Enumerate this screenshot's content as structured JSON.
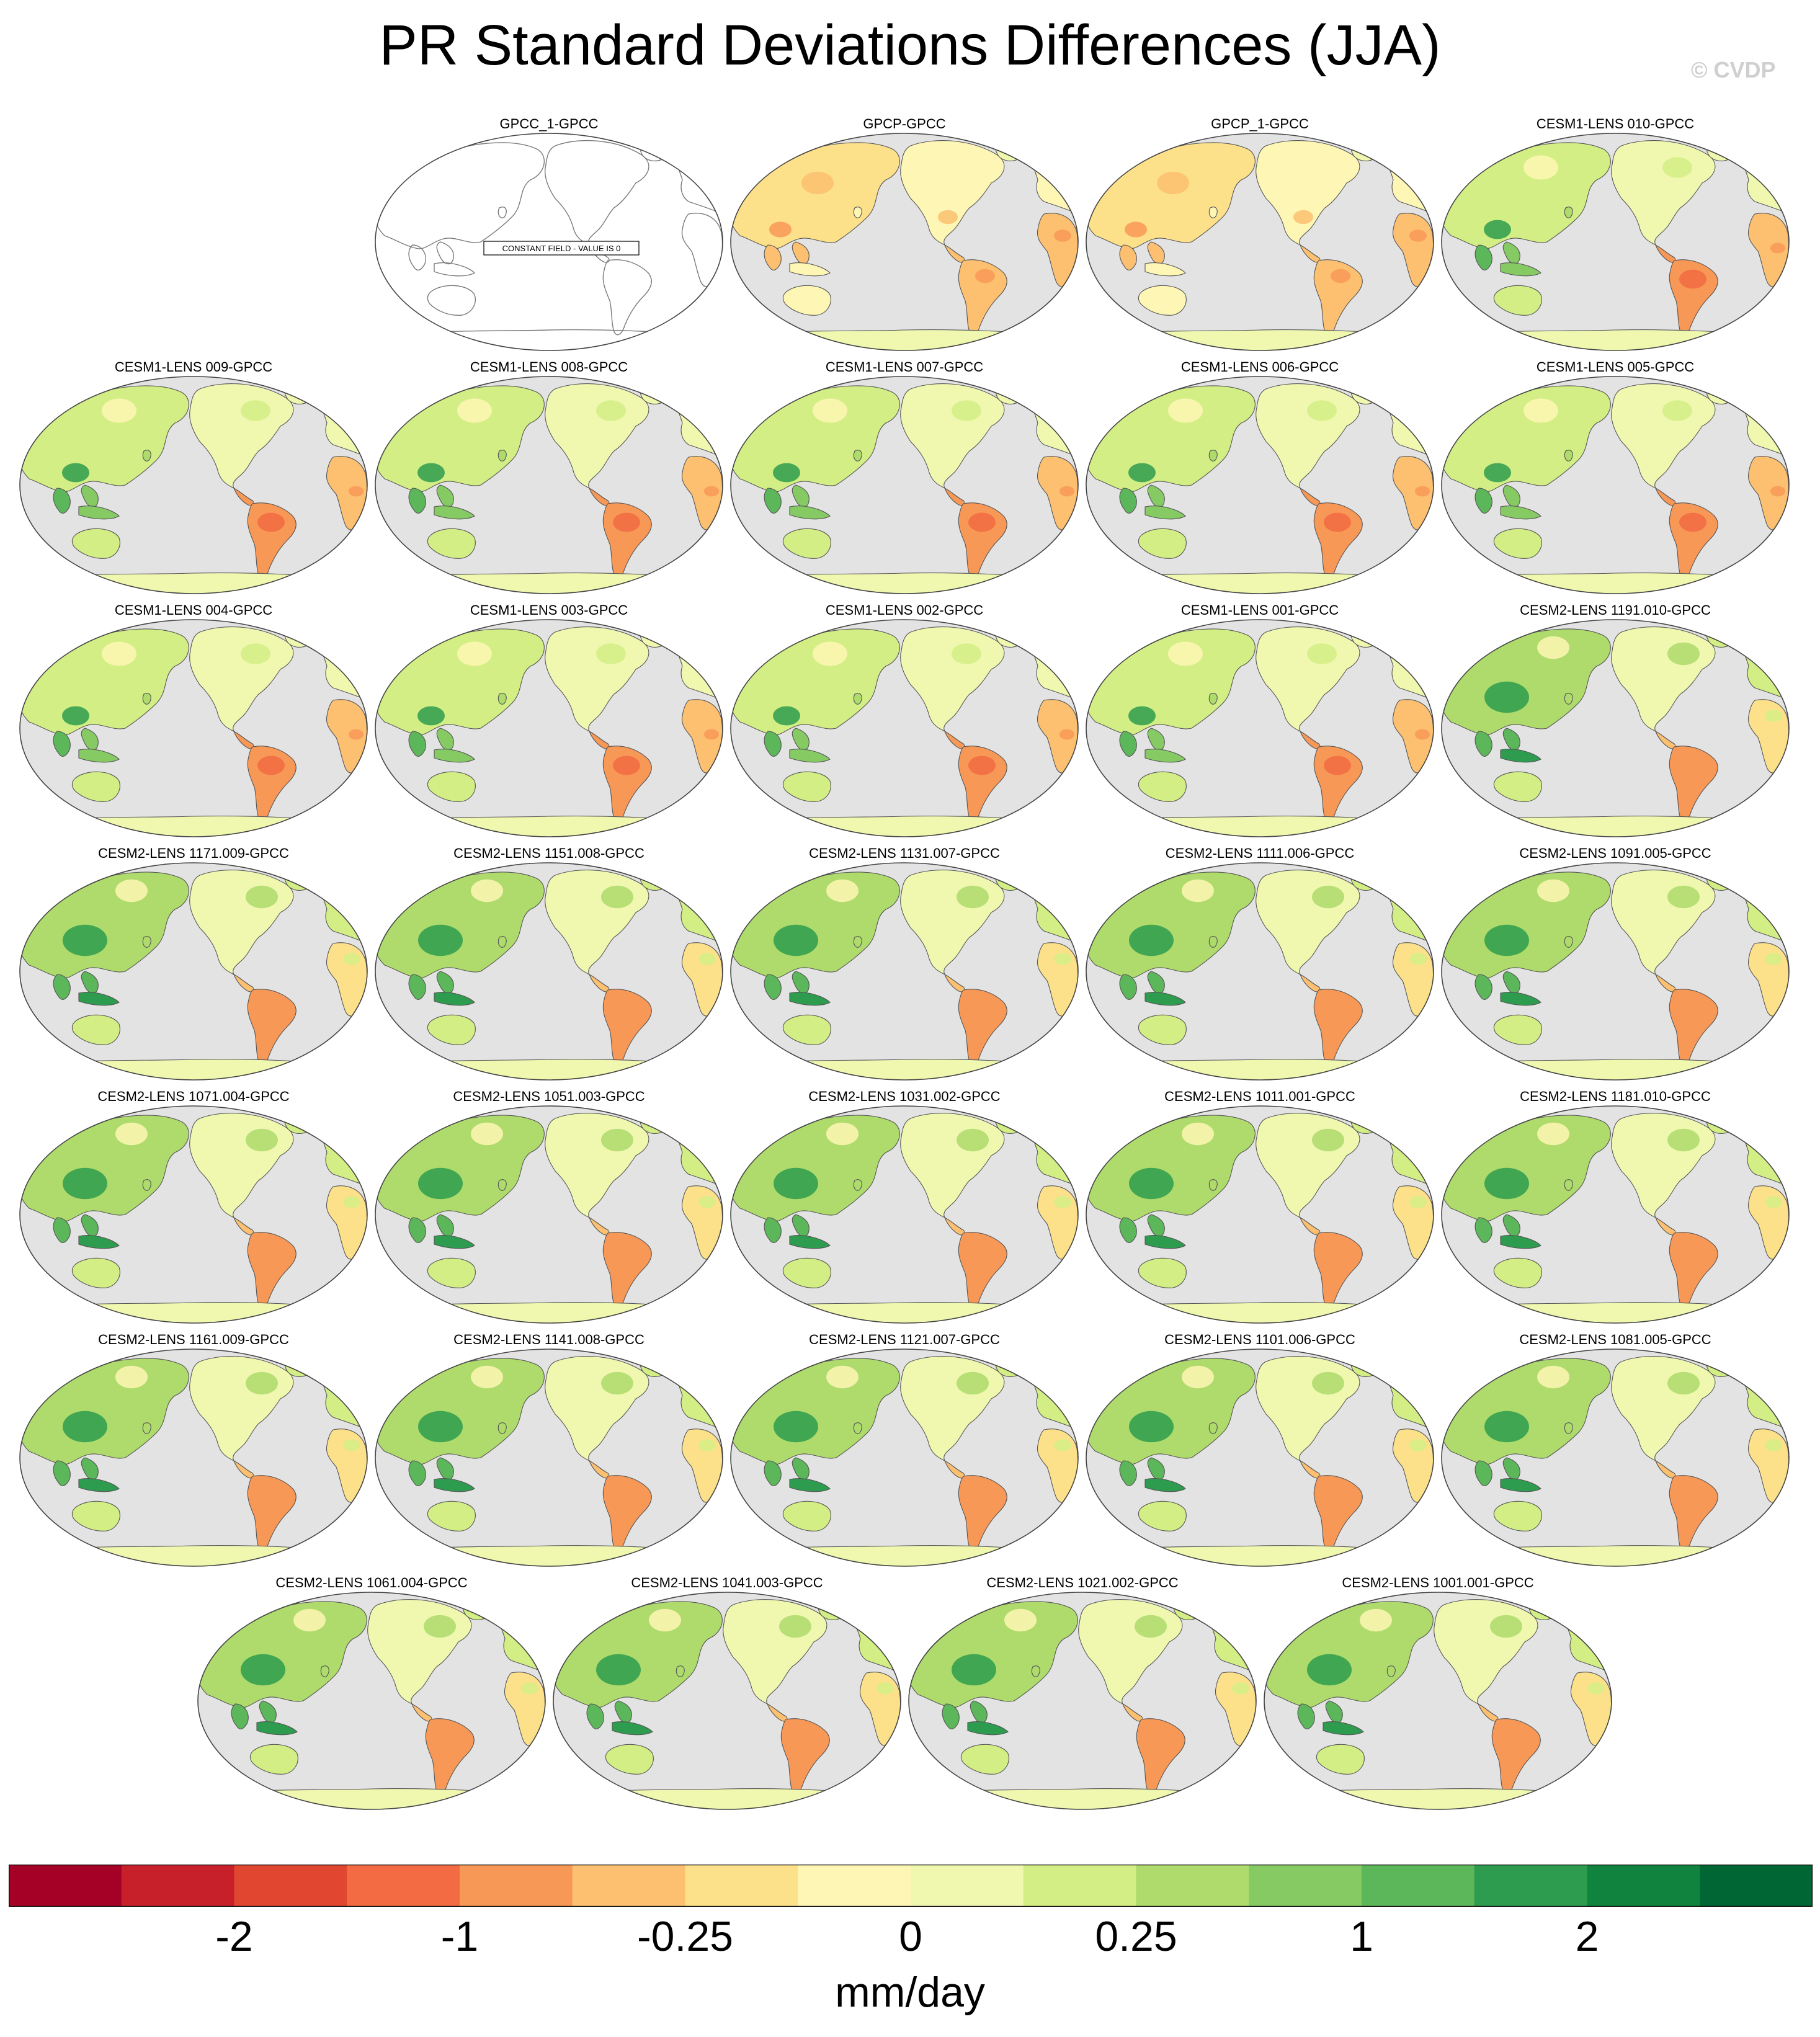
{
  "title": "PR Standard Deviations Differences (JJA)",
  "credit": "© CVDP",
  "panels": [
    {
      "label": "GPCC_1-GPCC",
      "constant": true,
      "constant_text": "CONSTANT FIELD - VALUE IS 0"
    },
    {
      "label": "GPCP-GPCC",
      "style": "obs"
    },
    {
      "label": "GPCP_1-GPCC",
      "style": "obs"
    },
    {
      "label": "CESM1-LENS 010-GPCC",
      "style": "cesm1"
    },
    {
      "label": "CESM1-LENS 009-GPCC",
      "style": "cesm1"
    },
    {
      "label": "CESM1-LENS 008-GPCC",
      "style": "cesm1"
    },
    {
      "label": "CESM1-LENS 007-GPCC",
      "style": "cesm1"
    },
    {
      "label": "CESM1-LENS 006-GPCC",
      "style": "cesm1"
    },
    {
      "label": "CESM1-LENS 005-GPCC",
      "style": "cesm1"
    },
    {
      "label": "CESM1-LENS 004-GPCC",
      "style": "cesm1"
    },
    {
      "label": "CESM1-LENS 003-GPCC",
      "style": "cesm1"
    },
    {
      "label": "CESM1-LENS 002-GPCC",
      "style": "cesm1"
    },
    {
      "label": "CESM1-LENS 001-GPCC",
      "style": "cesm1"
    },
    {
      "label": "CESM2-LENS 1191.010-GPCC",
      "style": "cesm2"
    },
    {
      "label": "CESM2-LENS 1171.009-GPCC",
      "style": "cesm2"
    },
    {
      "label": "CESM2-LENS 1151.008-GPCC",
      "style": "cesm2"
    },
    {
      "label": "CESM2-LENS 1131.007-GPCC",
      "style": "cesm2"
    },
    {
      "label": "CESM2-LENS 1111.006-GPCC",
      "style": "cesm2"
    },
    {
      "label": "CESM2-LENS 1091.005-GPCC",
      "style": "cesm2"
    },
    {
      "label": "CESM2-LENS 1071.004-GPCC",
      "style": "cesm2"
    },
    {
      "label": "CESM2-LENS 1051.003-GPCC",
      "style": "cesm2"
    },
    {
      "label": "CESM2-LENS 1031.002-GPCC",
      "style": "cesm2"
    },
    {
      "label": "CESM2-LENS 1011.001-GPCC",
      "style": "cesm2"
    },
    {
      "label": "CESM2-LENS 1181.010-GPCC",
      "style": "cesm2"
    },
    {
      "label": "CESM2-LENS 1161.009-GPCC",
      "style": "cesm2"
    },
    {
      "label": "CESM2-LENS 1141.008-GPCC",
      "style": "cesm2"
    },
    {
      "label": "CESM2-LENS 1121.007-GPCC",
      "style": "cesm2"
    },
    {
      "label": "CESM2-LENS 1101.006-GPCC",
      "style": "cesm2"
    },
    {
      "label": "CESM2-LENS 1081.005-GPCC",
      "style": "cesm2"
    },
    {
      "label": "CESM2-LENS 1061.004-GPCC",
      "style": "cesm2"
    },
    {
      "label": "CESM2-LENS 1041.003-GPCC",
      "style": "cesm2"
    },
    {
      "label": "CESM2-LENS 1021.002-GPCC",
      "style": "cesm2"
    },
    {
      "label": "CESM2-LENS 1001.001-GPCC",
      "style": "cesm2"
    }
  ],
  "colorbar": {
    "colors": [
      "#a50026",
      "#c7202a",
      "#e14631",
      "#f26b42",
      "#f89857",
      "#fcc070",
      "#fde18a",
      "#fef6b4",
      "#f0f8b0",
      "#d3ee85",
      "#aedb6c",
      "#86ca64",
      "#5cb65a",
      "#2e9c4e",
      "#10833e",
      "#006633"
    ],
    "tick_labels": [
      "-2",
      "-1",
      "-0.25",
      "0",
      "0.25",
      "1",
      "2"
    ],
    "tick_boundaries": [
      2,
      4,
      6,
      8,
      10,
      12,
      14
    ],
    "units": "mm/day"
  },
  "map_colors": {
    "ocean": "#e3e3e3",
    "coast": "#555555"
  }
}
